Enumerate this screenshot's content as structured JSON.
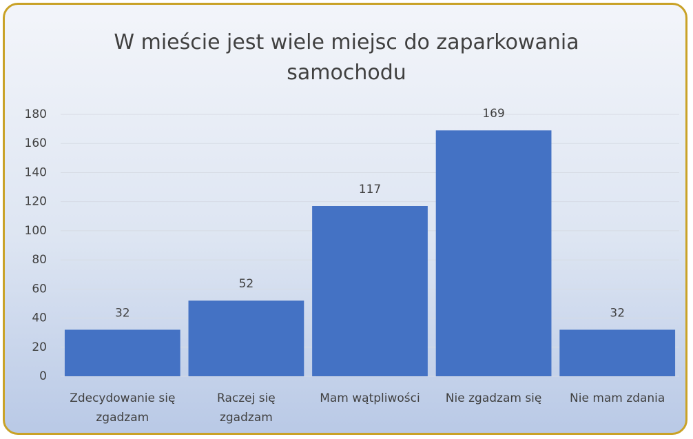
{
  "chart_data": {
    "type": "bar",
    "title": "W mieście jest wiele miejsc do zaparkowania samochodu",
    "categories": [
      "Zdecydowanie się zgadzam",
      "Raczej się zgadzam",
      "Mam wątpliwości",
      "Nie zgadzam się",
      "Nie mam zdania"
    ],
    "values": [
      32,
      52,
      117,
      169,
      32
    ],
    "color": "#4472c4",
    "ylim": [
      0,
      180
    ],
    "yticks": [
      0,
      20,
      40,
      60,
      80,
      100,
      120,
      140,
      160,
      180
    ],
    "grid": true
  }
}
